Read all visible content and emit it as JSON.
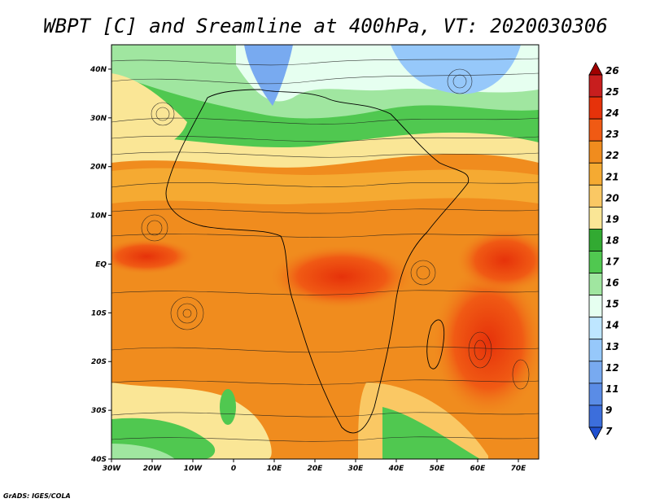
{
  "title": "WBPT [C] and Sreamline at 400hPa, VT: 2020030306",
  "credit": "GrADS: IGES/COLA",
  "map": {
    "lon_range": [
      -30,
      75
    ],
    "lat_range": [
      -40,
      45
    ],
    "lon_ticks": [
      {
        "value": -30,
        "label": "30W"
      },
      {
        "value": -20,
        "label": "20W"
      },
      {
        "value": -10,
        "label": "10W"
      },
      {
        "value": 0,
        "label": "0"
      },
      {
        "value": 10,
        "label": "10E"
      },
      {
        "value": 20,
        "label": "20E"
      },
      {
        "value": 30,
        "label": "30E"
      },
      {
        "value": 40,
        "label": "40E"
      },
      {
        "value": 50,
        "label": "50E"
      },
      {
        "value": 60,
        "label": "60E"
      },
      {
        "value": 70,
        "label": "70E"
      }
    ],
    "lat_ticks": [
      {
        "value": 40,
        "label": "40N"
      },
      {
        "value": 30,
        "label": "30N"
      },
      {
        "value": 20,
        "label": "20N"
      },
      {
        "value": 10,
        "label": "10N"
      },
      {
        "value": 0,
        "label": "EQ"
      },
      {
        "value": -10,
        "label": "10S"
      },
      {
        "value": -20,
        "label": "20S"
      },
      {
        "value": -30,
        "label": "30S"
      },
      {
        "value": -40,
        "label": "40S"
      }
    ]
  },
  "colorbar": {
    "labels": [
      "26",
      "25",
      "24",
      "23",
      "22",
      "21",
      "20",
      "19",
      "18",
      "17",
      "16",
      "15",
      "14",
      "13",
      "12",
      "11",
      "9",
      "7"
    ],
    "colors": [
      "#a00000",
      "#c81e1e",
      "#e6320a",
      "#f05a14",
      "#f08c1e",
      "#f5aa32",
      "#fac864",
      "#fae696",
      "#32aa32",
      "#50c850",
      "#a0e6a0",
      "#e6fff0",
      "#bee6ff",
      "#96c8fa",
      "#78aaf0",
      "#5a8ce6",
      "#3c6edc",
      "#2050d0"
    ]
  }
}
